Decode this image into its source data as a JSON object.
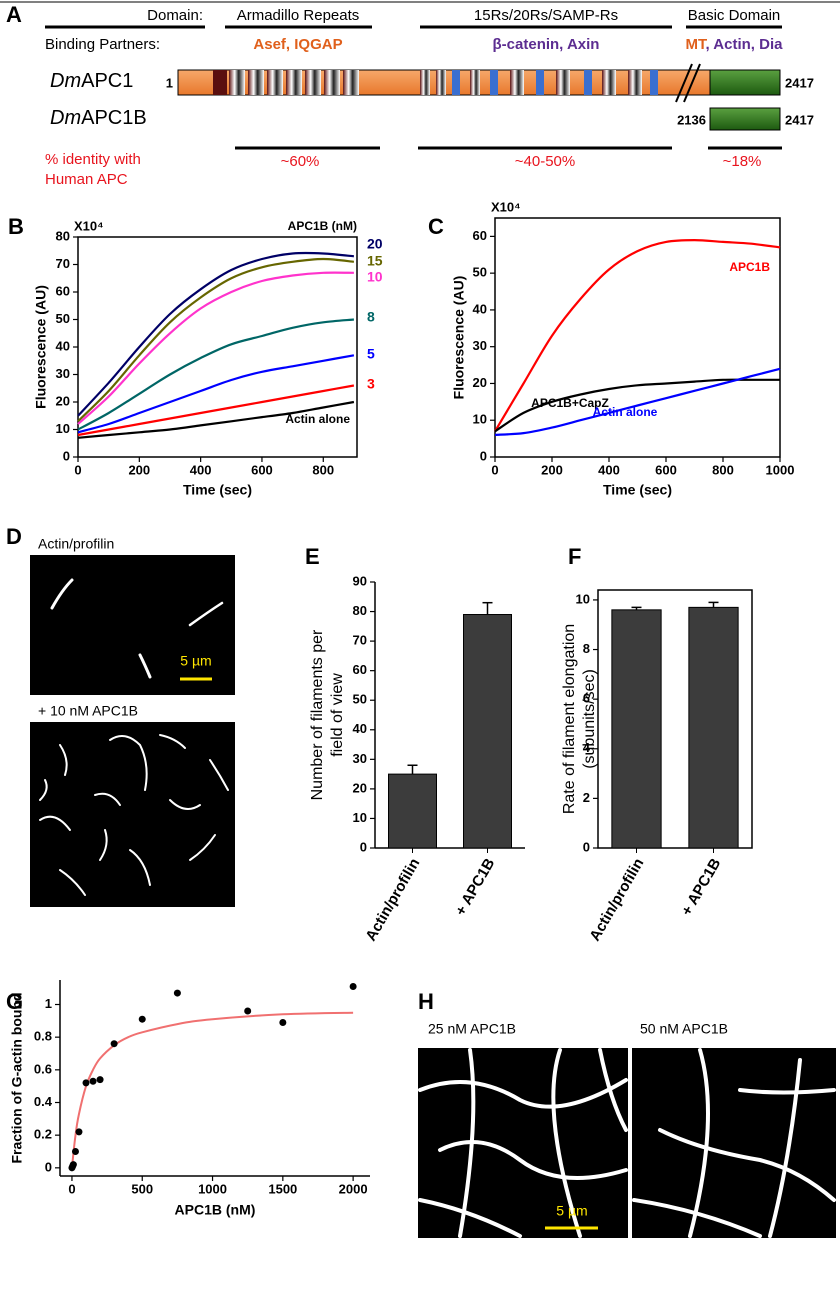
{
  "panel_a": {
    "letter": "A",
    "domain_header": "Domain:",
    "partners_header": "Binding Partners:",
    "domains": [
      {
        "name": "Armadillo Repeats",
        "partners": [
          {
            "text": "Asef, IQGAP",
            "color": "#e0601c"
          }
        ]
      },
      {
        "name": "15Rs/20Rs/SAMP-Rs",
        "partners": [
          {
            "text": "β-catenin, Axin",
            "color": "#5c2d91"
          }
        ]
      },
      {
        "name": "Basic Domain",
        "partners": [
          {
            "text": "MT",
            "color": "#e0601c"
          },
          {
            "text": ", Actin, Dia",
            "color": "#5c2d91"
          }
        ]
      }
    ],
    "proteins": [
      {
        "prefix": "Dm",
        "name": "APC1",
        "start": 1,
        "end": 2417
      },
      {
        "prefix": "Dm",
        "name": "APC1B",
        "start": 2136,
        "end": 2417
      }
    ],
    "identity_label": [
      "% identity with",
      "Human APC"
    ],
    "identity_values": [
      "~60%",
      "~40-50%",
      "~18%"
    ]
  },
  "panel_d": {
    "letter": "D",
    "labels": [
      "Actin/profilin",
      "+ 10 nM APC1B"
    ],
    "scale": "5 µm"
  },
  "panel_h": {
    "letter": "H",
    "labels": [
      "25 nM APC1B",
      "50 nM APC1B"
    ],
    "scale": "5 µm"
  },
  "chart_data": [
    {
      "panel": "B",
      "type": "line",
      "multiplier": "X10⁴",
      "xlabel": "Time (sec)",
      "ylabel": "Fluorescence (AU)",
      "legend_title": "APC1B (nM)",
      "x": [
        0,
        100,
        200,
        300,
        400,
        500,
        600,
        700,
        800,
        900
      ],
      "xlim": [
        0,
        910
      ],
      "xticks": [
        0,
        200,
        400,
        600,
        800
      ],
      "ylim": [
        0,
        80
      ],
      "yticks": [
        0,
        10,
        20,
        30,
        40,
        50,
        60,
        70,
        80
      ],
      "series": [
        {
          "name": "20",
          "color": "#000066",
          "values": [
            15,
            27,
            40,
            52,
            61,
            68,
            72,
            74,
            74,
            73
          ]
        },
        {
          "name": "15",
          "color": "#666600",
          "values": [
            13,
            24,
            37,
            49,
            58,
            65,
            69,
            71,
            72,
            71
          ]
        },
        {
          "name": "10",
          "color": "#ff33cc",
          "values": [
            12,
            22,
            34,
            45,
            54,
            60,
            64,
            66,
            67,
            67
          ]
        },
        {
          "name": "8",
          "color": "#006666",
          "values": [
            10,
            16,
            23,
            30,
            36,
            41,
            44,
            47,
            49,
            50
          ]
        },
        {
          "name": "5",
          "color": "#0000ff",
          "values": [
            9,
            12,
            16,
            20,
            24,
            28,
            31,
            33,
            35,
            37
          ]
        },
        {
          "name": "3",
          "color": "#ff0000",
          "values": [
            8,
            10,
            12,
            14,
            16,
            18,
            20,
            22,
            24,
            26
          ]
        },
        {
          "name": "Actin alone",
          "color": "#000000",
          "values": [
            7,
            8,
            9,
            10,
            11.5,
            13,
            14.5,
            16,
            18,
            20
          ]
        }
      ]
    },
    {
      "panel": "C",
      "type": "line",
      "multiplier": "X10⁴",
      "xlabel": "Time (sec)",
      "ylabel": "Fluorescence (AU)",
      "x": [
        0,
        100,
        200,
        300,
        400,
        500,
        600,
        700,
        800,
        900,
        1000
      ],
      "xlim": [
        0,
        1000
      ],
      "xticks": [
        0,
        200,
        400,
        600,
        800,
        1000
      ],
      "ylim": [
        0,
        65
      ],
      "yticks": [
        0,
        10,
        20,
        30,
        40,
        50,
        60
      ],
      "series": [
        {
          "name": "APC1B",
          "color": "#ff0000",
          "values": [
            7,
            20,
            33,
            43,
            51,
            56,
            58.5,
            59,
            58.5,
            58,
            57
          ]
        },
        {
          "name": "APC1B+CapZ",
          "color": "#000000",
          "values": [
            7,
            12,
            15,
            17,
            18.5,
            19.5,
            20,
            20.5,
            21,
            21,
            21
          ]
        },
        {
          "name": "Actin alone",
          "color": "#0000ff",
          "values": [
            6,
            6.5,
            8,
            10,
            12,
            14,
            16,
            18,
            20,
            22,
            24
          ]
        }
      ]
    },
    {
      "panel": "E",
      "type": "bar",
      "ylabel": [
        "Number of filaments per",
        "field of view"
      ],
      "categories": [
        "Actin/profilin",
        "+ APC1B"
      ],
      "values": [
        25,
        79
      ],
      "errors": [
        3,
        4
      ],
      "color": "#3c3c3c",
      "ylim": [
        0,
        90
      ],
      "yticks": [
        0,
        10,
        20,
        30,
        40,
        50,
        60,
        70,
        80,
        90
      ]
    },
    {
      "panel": "F",
      "type": "bar",
      "ylabel": [
        "Rate of filament elongation",
        "(subunits/sec)"
      ],
      "categories": [
        "Actin/profilin",
        "+ APC1B"
      ],
      "values": [
        9.6,
        9.7
      ],
      "errors": [
        0.1,
        0.2
      ],
      "color": "#3c3c3c",
      "ylim": [
        0,
        10.4
      ],
      "yticks": [
        0,
        2,
        4,
        6,
        8,
        10
      ]
    },
    {
      "panel": "G",
      "type": "scatter",
      "xlabel": "APC1B (nM)",
      "ylabel": "Fraction of G-actin bound",
      "points": {
        "color": "#000000",
        "x": [
          0,
          5,
          10,
          25,
          50,
          100,
          150,
          200,
          300,
          500,
          750,
          1250,
          1500,
          2000
        ],
        "values": [
          0,
          0.01,
          0.02,
          0.1,
          0.22,
          0.52,
          0.53,
          0.54,
          0.76,
          0.91,
          1.07,
          0.96,
          0.89,
          1.11
        ]
      },
      "fit": {
        "color": "#f07070",
        "x": [
          0,
          25,
          50,
          100,
          150,
          200,
          300,
          400,
          500,
          750,
          1000,
          1500,
          2000
        ],
        "values": [
          0,
          0.2,
          0.33,
          0.5,
          0.6,
          0.67,
          0.75,
          0.8,
          0.83,
          0.88,
          0.91,
          0.94,
          0.95
        ]
      },
      "xlim": [
        -85,
        2120
      ],
      "xticks": [
        0,
        500,
        1000,
        1500,
        2000
      ],
      "ylim": [
        -0.05,
        1.15
      ],
      "yticks": [
        0,
        0.2,
        0.4,
        0.6,
        0.8,
        1
      ]
    }
  ]
}
